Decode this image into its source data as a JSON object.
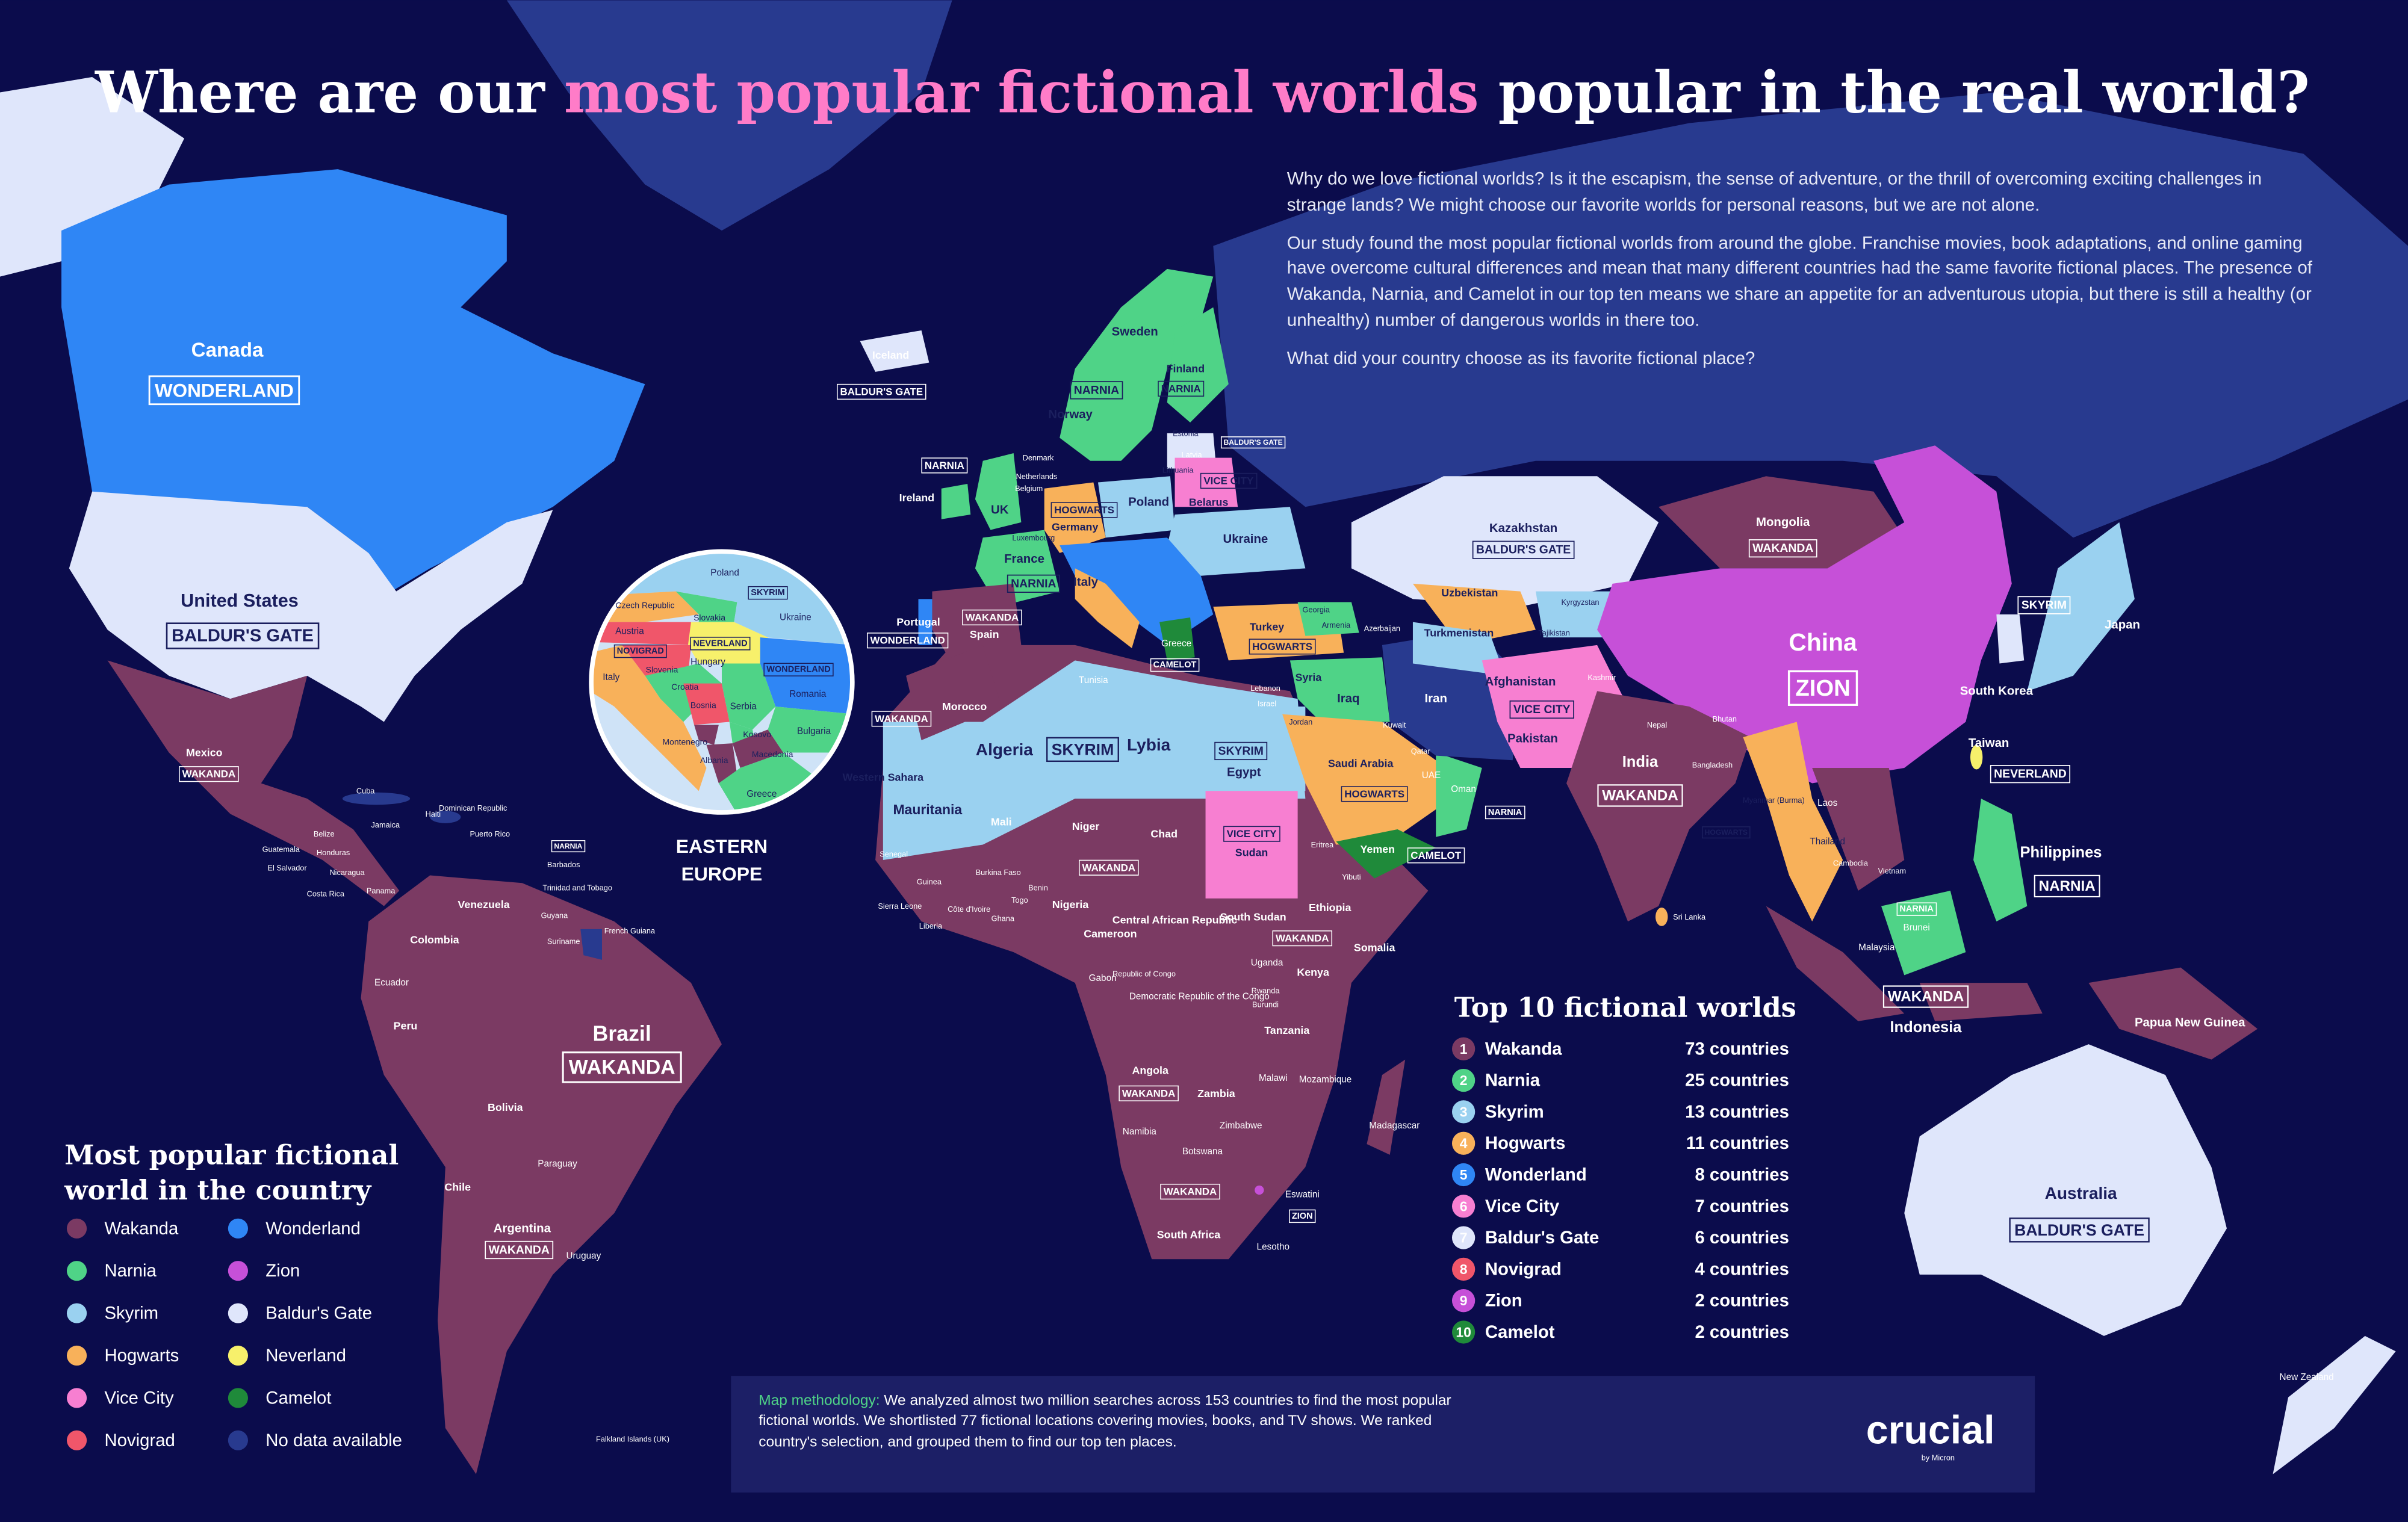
{
  "title": {
    "before": "Where are our ",
    "highlight": "most popular fictional worlds",
    "after": " popular in the real world?"
  },
  "intro": [
    "Why do we love fictional worlds? Is it the escapism, the sense of adventure, or the thrill of overcoming exciting challenges in strange lands? We might choose our favorite worlds for personal reasons, but we are not alone.",
    "Our study found the most popular fictional worlds from around the globe. Franchise movies, book adaptations, and online gaming have overcome cultural differences and mean that many different countries had the same favorite fictional places. The presence of Wakanda, Narnia, and Camelot in our top ten means we share an appetite for an adventurous utopia, but there is still a healthy (or unhealthy) number of dangerous worlds in there too.",
    "What did your country choose as its favorite fictional place?"
  ],
  "legend": {
    "title_lines": [
      "Most popular fictional",
      "world in the country"
    ],
    "items": [
      {
        "name": "Wakanda",
        "color": "#7b3a63"
      },
      {
        "name": "Narnia",
        "color": "#4fd387"
      },
      {
        "name": "Skyrim",
        "color": "#9ad1f0"
      },
      {
        "name": "Hogwarts",
        "color": "#f8b15a"
      },
      {
        "name": "Vice City",
        "color": "#f77fd1"
      },
      {
        "name": "Novigrad",
        "color": "#f0566a"
      },
      {
        "name": "Wonderland",
        "color": "#2f86f5"
      },
      {
        "name": "Zion",
        "color": "#c650d8"
      },
      {
        "name": "Baldur's Gate",
        "color": "#dfe6fb"
      },
      {
        "name": "Neverland",
        "color": "#f7f06b"
      },
      {
        "name": "Camelot",
        "color": "#1f8a3a"
      },
      {
        "name": "No data available",
        "color": "#283a8f"
      }
    ]
  },
  "top10": {
    "title": "Top 10 fictional worlds",
    "rows": [
      {
        "rank": 1,
        "name": "Wakanda",
        "count": "73 countries",
        "color": "#7b3a63"
      },
      {
        "rank": 2,
        "name": "Narnia",
        "count": "25 countries",
        "color": "#4fd387"
      },
      {
        "rank": 3,
        "name": "Skyrim",
        "count": "13 countries",
        "color": "#9ad1f0"
      },
      {
        "rank": 4,
        "name": "Hogwarts",
        "count": "11 countries",
        "color": "#f8b15a"
      },
      {
        "rank": 5,
        "name": "Wonderland",
        "count": "8 countries",
        "color": "#2f86f5"
      },
      {
        "rank": 6,
        "name": "Vice City",
        "count": "7 countries",
        "color": "#f77fd1"
      },
      {
        "rank": 7,
        "name": "Baldur's Gate",
        "count": "6 countries",
        "color": "#dfe6fb"
      },
      {
        "rank": 8,
        "name": "Novigrad",
        "count": "4 countries",
        "color": "#f0566a"
      },
      {
        "rank": 9,
        "name": "Zion",
        "count": "2 countries",
        "color": "#c650d8"
      },
      {
        "rank": 10,
        "name": "Camelot",
        "count": "2 countries",
        "color": "#1f8a3a"
      }
    ]
  },
  "methodology": {
    "lead": "Map methodology:",
    "text": " We analyzed almost two million searches across 153 countries to find the most popular fictional worlds. We shortlisted 77 fictional locations covering movies, books, and TV shows. We ranked country's selection, and grouped them to find our top ten places."
  },
  "logo": {
    "name": "crucial",
    "sub": "by Micron"
  },
  "inset": {
    "caption": [
      "EASTERN",
      "EUROPE"
    ],
    "labels": [
      {
        "name": "Poland",
        "tag": "SKYRIM"
      },
      {
        "name": "Czech Republic"
      },
      {
        "name": "Slovakia"
      },
      {
        "name": "Ukraine"
      },
      {
        "name": "Austria"
      },
      {
        "name": "Hungary",
        "tag": "NEVERLAND"
      },
      {
        "name": "Italy",
        "tag": "NOVIGRAD"
      },
      {
        "name": "Slovenia"
      },
      {
        "name": "Croatia"
      },
      {
        "name": "Romania",
        "tag": "WONDERLAND"
      },
      {
        "name": "Serbia"
      },
      {
        "name": "Bosnia"
      },
      {
        "name": "Bulgaria"
      },
      {
        "name": "Montenegro"
      },
      {
        "name": "Kosovo"
      },
      {
        "name": "Albania"
      },
      {
        "name": "Macedonia"
      },
      {
        "name": "Greece"
      }
    ]
  },
  "labels": [
    {
      "name": "Canada",
      "tag": "WONDERLAND"
    },
    {
      "name": "United States",
      "tag": "BALDUR'S GATE"
    },
    {
      "name": "Mexico",
      "tag": "WAKANDA"
    },
    {
      "name": "Cuba"
    },
    {
      "name": "Jamaica"
    },
    {
      "name": "Haiti"
    },
    {
      "name": "Dominican Republic"
    },
    {
      "name": "Puerto Rico"
    },
    {
      "name": "Belize"
    },
    {
      "name": "Guatemala"
    },
    {
      "name": "Honduras"
    },
    {
      "name": "El Salvador"
    },
    {
      "name": "Nicaragua"
    },
    {
      "name": "Costa Rica"
    },
    {
      "name": "Panama"
    },
    {
      "name": "Barbados",
      "tag": "NARNIA"
    },
    {
      "name": "Trinidad and Tobago"
    },
    {
      "name": "Venezuela"
    },
    {
      "name": "Guyana"
    },
    {
      "name": "Suriname"
    },
    {
      "name": "French Guiana"
    },
    {
      "name": "Colombia"
    },
    {
      "name": "Ecuador"
    },
    {
      "name": "Peru"
    },
    {
      "name": "Brazil",
      "tag": "WAKANDA"
    },
    {
      "name": "Bolivia"
    },
    {
      "name": "Paraguay"
    },
    {
      "name": "Chile"
    },
    {
      "name": "Argentina",
      "tag": "WAKANDA"
    },
    {
      "name": "Uruguay"
    },
    {
      "name": "Falkland Islands (UK)"
    },
    {
      "name": "Iceland",
      "tag": "BALDUR'S GATE"
    },
    {
      "name": "Norway",
      "tag": "NARNIA"
    },
    {
      "name": "Sweden"
    },
    {
      "name": "Finland",
      "tag": "NARNIA"
    },
    {
      "name": "Estonia"
    },
    {
      "name": "Latvia",
      "tag": "BALDUR'S GATE"
    },
    {
      "name": "Lithuania"
    },
    {
      "name": "Denmark"
    },
    {
      "name": "Netherlands"
    },
    {
      "name": "Belgium"
    },
    {
      "name": "Luxembourg"
    },
    {
      "name": "Ireland",
      "tag": "NARNIA"
    },
    {
      "name": "UK"
    },
    {
      "name": "Germany",
      "tag": "HOGWARTS"
    },
    {
      "name": "Poland"
    },
    {
      "name": "Belarus",
      "tag": "VICE CITY"
    },
    {
      "name": "Ukraine"
    },
    {
      "name": "France",
      "tag": "NARNIA"
    },
    {
      "name": "Italy"
    },
    {
      "name": "Portugal",
      "tag": "WONDERLAND"
    },
    {
      "name": "Spain",
      "tag": "WAKANDA"
    },
    {
      "name": "Greece",
      "tag": "CAMELOT"
    },
    {
      "name": "Turkey",
      "tag": "HOGWARTS"
    },
    {
      "name": "Georgia"
    },
    {
      "name": "Armenia"
    },
    {
      "name": "Azerbaijan"
    },
    {
      "name": "Morocco",
      "tag": "WAKANDA"
    },
    {
      "name": "Tunisia"
    },
    {
      "name": "Western Sahara"
    },
    {
      "name": "Algeria",
      "tag": "SKYRIM"
    },
    {
      "name": "Lybia"
    },
    {
      "name": "Egypt",
      "tag": "SKYRIM"
    },
    {
      "name": "Mauritania"
    },
    {
      "name": "Mali"
    },
    {
      "name": "Niger",
      "tag": "WAKANDA"
    },
    {
      "name": "Chad"
    },
    {
      "name": "Sudan",
      "tag": "VICE CITY"
    },
    {
      "name": "Eritrea"
    },
    {
      "name": "Yibuti"
    },
    {
      "name": "Senegal"
    },
    {
      "name": "Guinea"
    },
    {
      "name": "Sierra Leone"
    },
    {
      "name": "Liberia"
    },
    {
      "name": "Côte d'Ivoire"
    },
    {
      "name": "Burkina Faso"
    },
    {
      "name": "Ghana"
    },
    {
      "name": "Togo"
    },
    {
      "name": "Benin"
    },
    {
      "name": "Nigeria"
    },
    {
      "name": "Cameroon"
    },
    {
      "name": "Central African Republic"
    },
    {
      "name": "South Sudan"
    },
    {
      "name": "Ethiopia",
      "tag": "WAKANDA"
    },
    {
      "name": "Somalia"
    },
    {
      "name": "Gabon"
    },
    {
      "name": "Republic of Congo"
    },
    {
      "name": "Democratic Republic of the Congo"
    },
    {
      "name": "Uganda"
    },
    {
      "name": "Kenya"
    },
    {
      "name": "Rwanda"
    },
    {
      "name": "Burundi"
    },
    {
      "name": "Tanzania"
    },
    {
      "name": "Angola",
      "tag": "WAKANDA"
    },
    {
      "name": "Zambia"
    },
    {
      "name": "Malawi"
    },
    {
      "name": "Mozambique"
    },
    {
      "name": "Zimbabwe"
    },
    {
      "name": "Namibia"
    },
    {
      "name": "Botswana"
    },
    {
      "name": "Madagascar"
    },
    {
      "name": "South Africa",
      "tag": "WAKANDA"
    },
    {
      "name": "Eswatini",
      "tag": "ZION"
    },
    {
      "name": "Lesotho"
    },
    {
      "name": "Lebanon"
    },
    {
      "name": "Israel"
    },
    {
      "name": "Syria"
    },
    {
      "name": "Jordan"
    },
    {
      "name": "Iraq"
    },
    {
      "name": "Kuwait"
    },
    {
      "name": "Iran"
    },
    {
      "name": "Saudi Arabia",
      "tag": "HOGWARTS"
    },
    {
      "name": "Qatar"
    },
    {
      "name": "UAE"
    },
    {
      "name": "Oman",
      "tag": "NARNIA"
    },
    {
      "name": "Yemen",
      "tag": "CAMELOT"
    },
    {
      "name": "Uzbekistan"
    },
    {
      "name": "Turkmenistan"
    },
    {
      "name": "Kyrgyzstan"
    },
    {
      "name": "Tajikistan"
    },
    {
      "name": "Kazakhstan",
      "tag": "BALDUR'S GATE"
    },
    {
      "name": "Afghanistan",
      "tag": "VICE CITY"
    },
    {
      "name": "Pakistan"
    },
    {
      "name": "Kashmir"
    },
    {
      "name": "India",
      "tag": "WAKANDA"
    },
    {
      "name": "Nepal"
    },
    {
      "name": "Bhutan"
    },
    {
      "name": "Bangladesh"
    },
    {
      "name": "Sri Lanka"
    },
    {
      "name": "Mongolia",
      "tag": "WAKANDA"
    },
    {
      "name": "China",
      "tag": "ZION"
    },
    {
      "name": "Myanmar (Burma)",
      "tag": "HOGWARTS"
    },
    {
      "name": "Laos"
    },
    {
      "name": "Thailand"
    },
    {
      "name": "Cambodia"
    },
    {
      "name": "Vietnam"
    },
    {
      "name": "Malaysia"
    },
    {
      "name": "Brunei",
      "tag": "NARNIA"
    },
    {
      "name": "Indonesia",
      "tag": "WAKANDA"
    },
    {
      "name": "Philippines",
      "tag": "NARNIA"
    },
    {
      "name": "Taiwan",
      "tag": "NEVERLAND"
    },
    {
      "name": "South Korea"
    },
    {
      "name": "Japan",
      "tag": "SKYRIM"
    },
    {
      "name": "Papua New Guinea"
    },
    {
      "name": "Australia",
      "tag": "BALDUR'S GATE"
    },
    {
      "name": "New Zealand"
    }
  ]
}
